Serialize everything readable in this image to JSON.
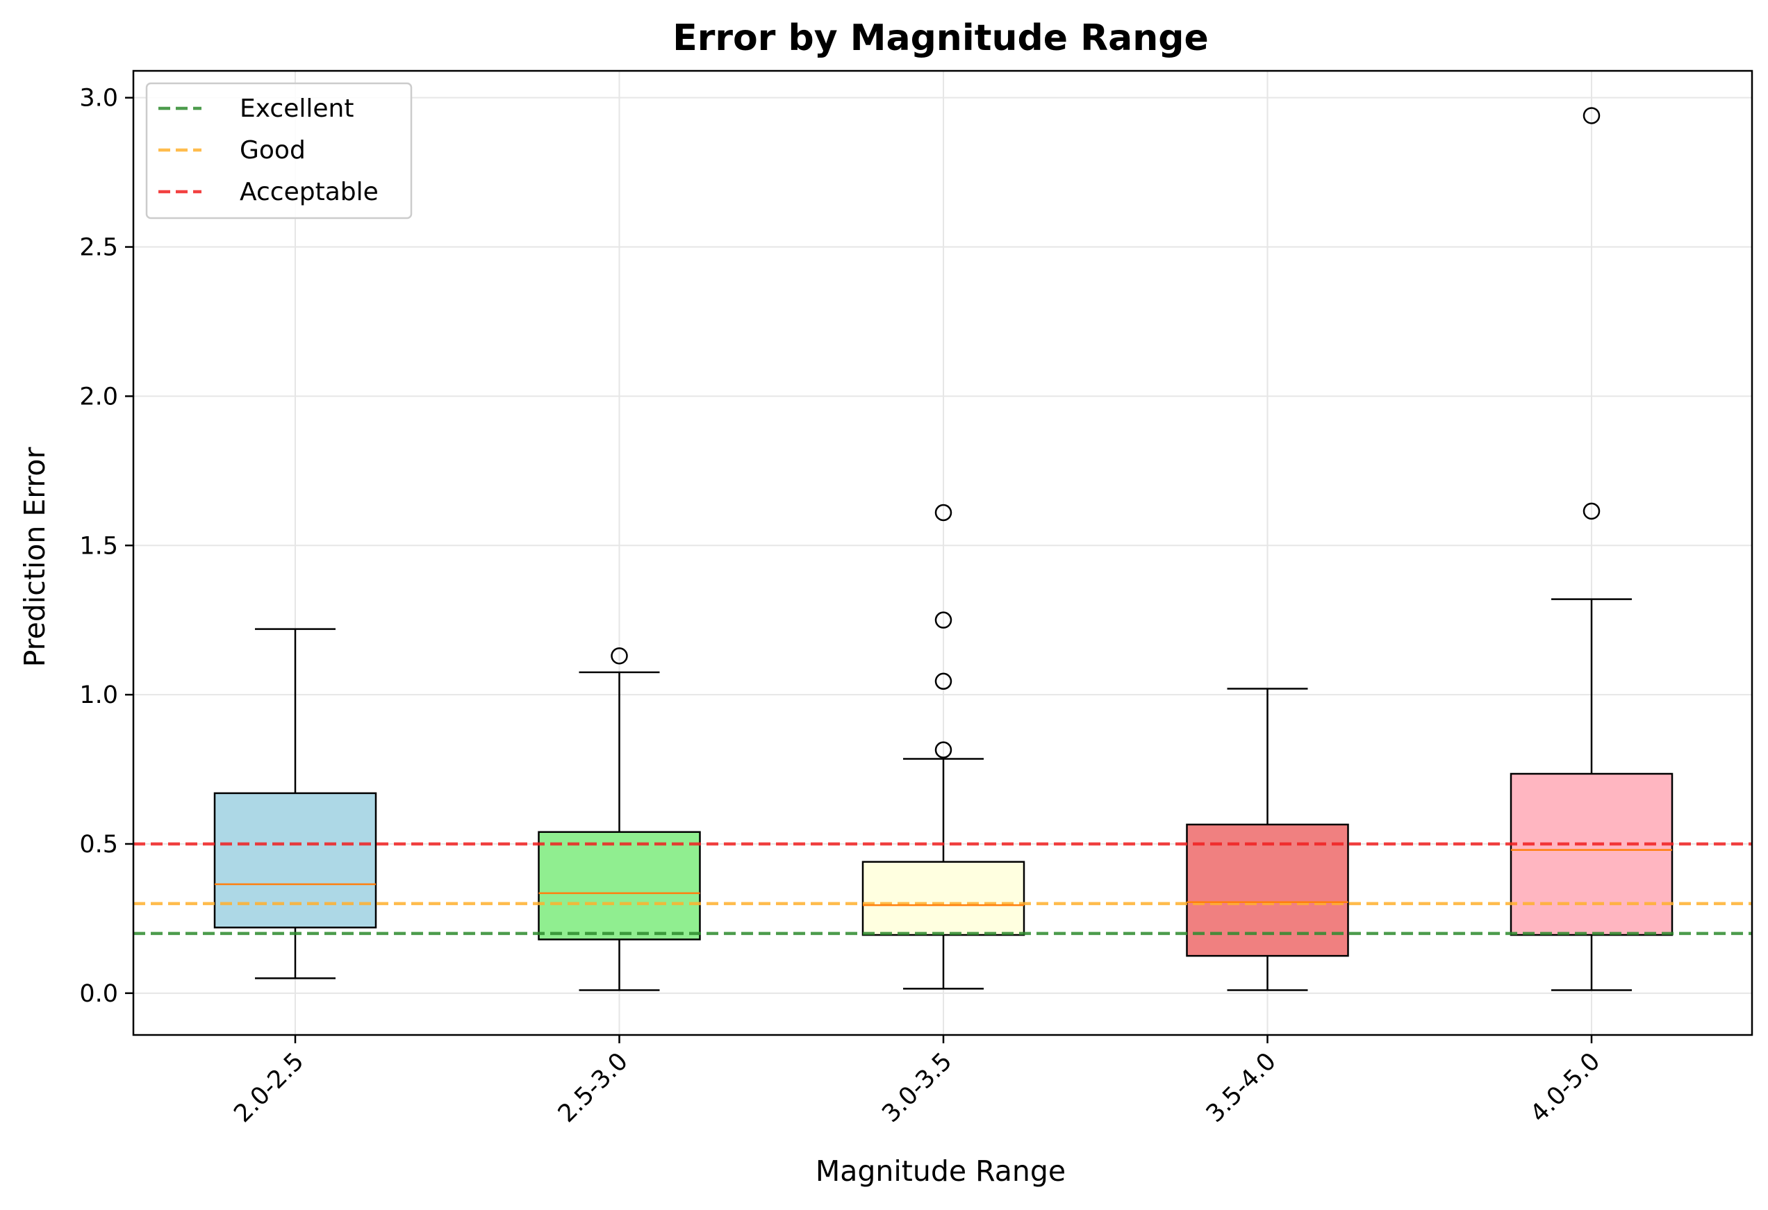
{
  "chart_data": {
    "type": "box",
    "title": "Error by Magnitude Range",
    "xlabel": "Magnitude Range",
    "ylabel": "Prediction Error",
    "ylim": [
      -0.14,
      3.09
    ],
    "yticks": [
      0.0,
      0.5,
      1.0,
      1.5,
      2.0,
      2.5,
      3.0
    ],
    "ytick_labels": [
      "0.0",
      "0.5",
      "1.0",
      "1.5",
      "2.0",
      "2.5",
      "3.0"
    ],
    "grid": true,
    "legend_position": "top-left",
    "categories": [
      "2.0-2.5",
      "2.5-3.0",
      "3.0-3.5",
      "3.5-4.0",
      "4.0-5.0"
    ],
    "boxes": [
      {
        "category": "2.0-2.5",
        "whisker_low": 0.05,
        "q1": 0.22,
        "median": 0.365,
        "q3": 0.67,
        "whisker_high": 1.22,
        "outliers": [],
        "color": "#add8e6"
      },
      {
        "category": "2.5-3.0",
        "whisker_low": 0.01,
        "q1": 0.18,
        "median": 0.335,
        "q3": 0.54,
        "whisker_high": 1.075,
        "outliers": [
          1.13
        ],
        "color": "#90ee90"
      },
      {
        "category": "3.0-3.5",
        "whisker_low": 0.015,
        "q1": 0.195,
        "median": 0.295,
        "q3": 0.44,
        "whisker_high": 0.785,
        "outliers": [
          0.815,
          1.045,
          1.25,
          1.61
        ],
        "color": "#ffffe0"
      },
      {
        "category": "3.5-4.0",
        "whisker_low": 0.01,
        "q1": 0.125,
        "median": 0.305,
        "q3": 0.565,
        "whisker_high": 1.02,
        "outliers": [],
        "color": "#f08080"
      },
      {
        "category": "4.0-5.0",
        "whisker_low": 0.01,
        "q1": 0.195,
        "median": 0.48,
        "q3": 0.735,
        "whisker_high": 1.32,
        "outliers": [
          1.615,
          2.94
        ],
        "color": "#ffb6c1"
      }
    ],
    "reference_lines": [
      {
        "name": "Excellent",
        "y": 0.2,
        "color": "#2e8b2e"
      },
      {
        "name": "Good",
        "y": 0.3,
        "color": "#ffb02e"
      },
      {
        "name": "Acceptable",
        "y": 0.5,
        "color": "#f02020"
      }
    ],
    "median_color": "#ff7f0e"
  }
}
